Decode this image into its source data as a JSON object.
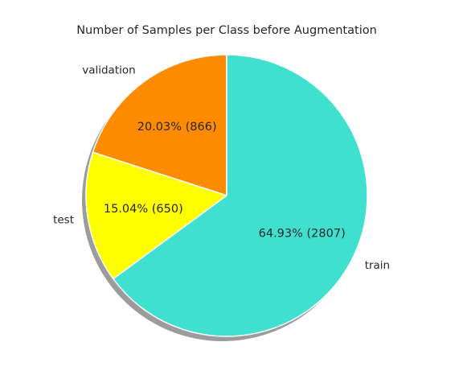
{
  "chart_data": {
    "type": "pie",
    "title": "Number of Samples per Class before Augmentation",
    "labels": [
      "validation",
      "test",
      "train"
    ],
    "values": [
      866,
      650,
      2807
    ],
    "percent_labels": [
      "20.03%  (866)",
      "15.04%  (650)",
      "64.93%  (2807)"
    ],
    "colors": [
      "#ff8c00",
      "#ffff00",
      "#40e0d0"
    ],
    "start_angle_deg": 90,
    "counterclockwise": true,
    "shadow": true,
    "edge_color": "#ffffff"
  }
}
